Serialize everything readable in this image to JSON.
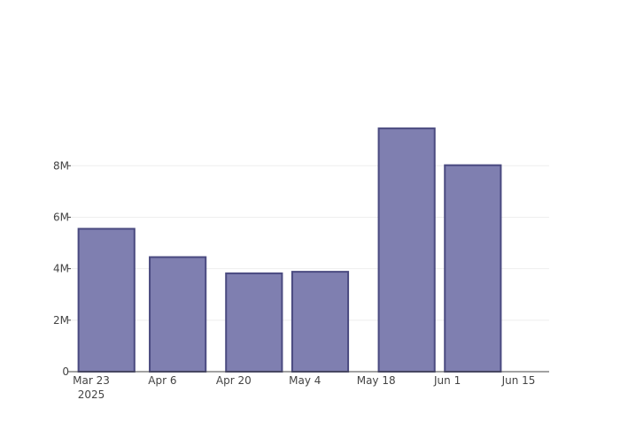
{
  "chart_data": {
    "type": "bar",
    "title": "",
    "xlabel": "",
    "ylabel": "",
    "x_axis_type": "date",
    "bar_width_days": 11,
    "x_range": [
      "2025-03-19",
      "2025-06-21"
    ],
    "x_ticks": [
      {
        "date": "2025-03-23",
        "label": "Mar 23",
        "sublabel": "2025"
      },
      {
        "date": "2025-04-06",
        "label": "Apr 6",
        "sublabel": ""
      },
      {
        "date": "2025-04-20",
        "label": "Apr 20",
        "sublabel": ""
      },
      {
        "date": "2025-05-04",
        "label": "May 4",
        "sublabel": ""
      },
      {
        "date": "2025-05-18",
        "label": "May 18",
        "sublabel": ""
      },
      {
        "date": "2025-06-01",
        "label": "Jun 1",
        "sublabel": ""
      },
      {
        "date": "2025-06-15",
        "label": "Jun 15",
        "sublabel": ""
      }
    ],
    "y_range": [
      0,
      11000000
    ],
    "y_ticks": [
      {
        "value": 0,
        "label": "0"
      },
      {
        "value": 2000000,
        "label": "2M"
      },
      {
        "value": 4000000,
        "label": "4M"
      },
      {
        "value": 6000000,
        "label": "6M"
      },
      {
        "value": 8000000,
        "label": "8M"
      }
    ],
    "grid": true,
    "series": [
      {
        "name": "",
        "x": [
          "2025-03-26",
          "2025-04-09",
          "2025-04-24",
          "2025-05-07",
          "2025-05-24",
          "2025-06-06"
        ],
        "values": [
          5550000,
          4450000,
          3820000,
          3880000,
          9450000,
          8020000
        ]
      }
    ],
    "colors": {
      "bar_fill": "#7f7fb0",
      "bar_stroke": "#4a4a80",
      "grid": "#eeeeee",
      "axis": "#444444",
      "text": "#444444"
    }
  }
}
